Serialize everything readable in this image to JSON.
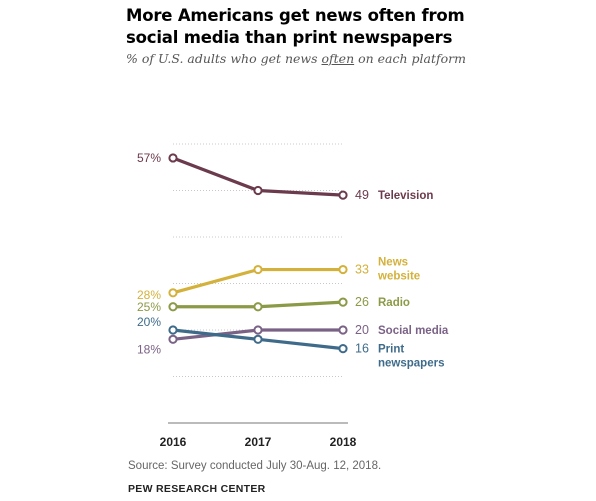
{
  "header": {
    "title_line1": "More Americans get news often from",
    "title_line2": "social media than print newspapers",
    "subtitle_pre": "% of U.S. adults who get news ",
    "subtitle_em": "often",
    "subtitle_post": " on each platform"
  },
  "footer": {
    "source": "Source: Survey conducted July 30-Aug. 12, 2018.",
    "brand": "PEW RESEARCH CENTER"
  },
  "chart_data": {
    "type": "line",
    "x": [
      "2016",
      "2017",
      "2018"
    ],
    "ylim": [
      0,
      70
    ],
    "grid": true,
    "series": [
      {
        "name": "Television",
        "name_lines": [
          "Television"
        ],
        "values": [
          57,
          50,
          49
        ],
        "color": "#6b3a4d",
        "start_label": "57%",
        "end_label": "49"
      },
      {
        "name": "News website",
        "name_lines": [
          "News",
          "website"
        ],
        "values": [
          28,
          33,
          33
        ],
        "color": "#d4b13b",
        "start_label": "28%",
        "end_label": "33"
      },
      {
        "name": "Radio",
        "name_lines": [
          "Radio"
        ],
        "values": [
          25,
          25,
          26
        ],
        "color": "#8b9a46",
        "start_label": "25%",
        "end_label": "26"
      },
      {
        "name": "Social media",
        "name_lines": [
          "Social media"
        ],
        "values": [
          18,
          20,
          20
        ],
        "color": "#7a6286",
        "start_label": "18%",
        "end_label": "20"
      },
      {
        "name": "Print newspapers",
        "name_lines": [
          "Print",
          "newspapers"
        ],
        "values": [
          20,
          18,
          16
        ],
        "color": "#3f6b8a",
        "start_label": "20%",
        "end_label": "16"
      }
    ]
  }
}
